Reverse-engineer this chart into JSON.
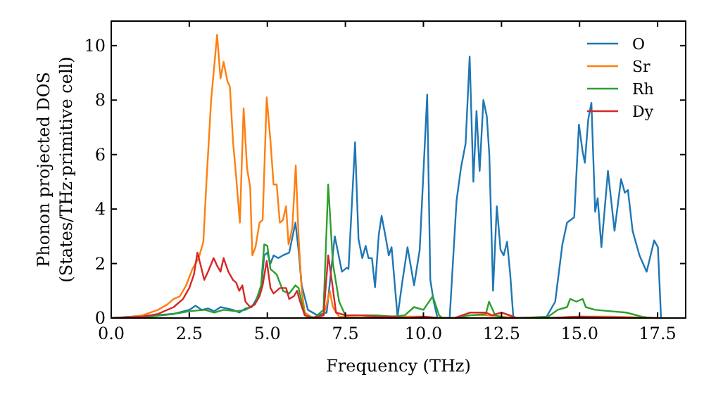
{
  "chart_data": {
    "type": "line",
    "xlabel": "Frequency (THz)",
    "ylabel": "Phonon projected DOS\n(States/THz·primitive cell)",
    "xlim": [
      0,
      18.4
    ],
    "ylim": [
      0,
      10.9
    ],
    "xticks": [
      {
        "value": 0,
        "label": "0.0"
      },
      {
        "value": 2.5,
        "label": "2.5"
      },
      {
        "value": 5,
        "label": "5.0"
      },
      {
        "value": 7.5,
        "label": "7.5"
      },
      {
        "value": 10,
        "label": "10.0"
      },
      {
        "value": 12.5,
        "label": "12.5"
      },
      {
        "value": 15,
        "label": "15.0"
      },
      {
        "value": 17.5,
        "label": "17.5"
      }
    ],
    "yticks": [
      0,
      2,
      4,
      6,
      8,
      10
    ],
    "grid": false,
    "legend": "top right",
    "marker": "none",
    "line_style": "solid",
    "series": [
      {
        "name": "O",
        "color": "#1f77b4",
        "x": [
          0,
          2,
          2.5,
          2.7,
          2.9,
          3.1,
          3.3,
          3.5,
          3.7,
          3.9,
          4.1,
          4.3,
          4.5,
          4.6,
          4.8,
          4.9,
          5.0,
          5.1,
          5.2,
          5.35,
          5.5,
          5.7,
          5.9,
          6.0,
          6.1,
          6.3,
          6.6,
          6.9,
          7.16,
          7.39,
          7.55,
          7.6,
          7.81,
          7.92,
          8.04,
          8.15,
          8.24,
          8.35,
          8.45,
          8.57,
          8.66,
          8.8,
          8.89,
          8.98,
          9.17,
          9.32,
          9.49,
          9.7,
          9.88,
          10.12,
          10.22,
          10.33,
          10.45,
          10.84,
          11.06,
          11.2,
          11.35,
          11.48,
          11.6,
          11.7,
          11.8,
          11.92,
          12.03,
          12.11,
          12.23,
          12.35,
          12.47,
          12.57,
          12.68,
          12.78,
          12.88,
          13.92,
          14.22,
          14.45,
          14.6,
          14.83,
          14.98,
          15.1,
          15.17,
          15.28,
          15.38,
          15.5,
          15.58,
          15.7,
          15.91,
          16.12,
          16.33,
          16.45,
          16.55,
          16.7,
          16.92,
          17.15,
          17.39,
          17.51,
          17.61
        ],
        "values": [
          0,
          0.15,
          0.3,
          0.45,
          0.3,
          0.35,
          0.25,
          0.4,
          0.35,
          0.3,
          0.2,
          0.35,
          0.4,
          0.6,
          1.0,
          2.3,
          2.4,
          2.0,
          2.3,
          2.2,
          2.3,
          2.4,
          3.5,
          2.5,
          1.2,
          0.3,
          0.1,
          0.2,
          3.0,
          1.7,
          1.85,
          1.8,
          6.45,
          2.9,
          2.2,
          2.65,
          2.2,
          2.2,
          1.13,
          3.06,
          3.75,
          2.9,
          2.3,
          2.6,
          0.05,
          1.3,
          2.6,
          1.2,
          2.5,
          8.2,
          1.4,
          0.6,
          0,
          0,
          4.3,
          5.5,
          6.4,
          9.6,
          5.0,
          7.6,
          5.4,
          8.0,
          7.4,
          6.0,
          1.0,
          4.1,
          2.5,
          2.3,
          2.8,
          1.6,
          0,
          0,
          0.6,
          2.7,
          3.5,
          3.7,
          7.1,
          6.1,
          5.7,
          7.3,
          7.9,
          3.9,
          4.4,
          2.6,
          5.4,
          3.2,
          5.1,
          4.6,
          4.7,
          3.2,
          2.3,
          1.7,
          2.85,
          2.6,
          0
        ]
      },
      {
        "name": "Sr",
        "color": "#ff7f0e",
        "x": [
          0,
          0.5,
          1,
          1.5,
          1.8,
          2.0,
          2.2,
          2.4,
          2.6,
          2.8,
          2.95,
          3.05,
          3.2,
          3.39,
          3.5,
          3.6,
          3.72,
          3.8,
          3.9,
          4.0,
          4.12,
          4.24,
          4.35,
          4.45,
          4.52,
          4.62,
          4.75,
          4.85,
          4.98,
          5.1,
          5.2,
          5.3,
          5.4,
          5.5,
          5.6,
          5.68,
          5.8,
          5.91,
          6.0,
          6.1,
          6.2,
          6.4,
          6.6,
          6.8,
          6.9,
          7.0,
          7.1,
          7.3,
          8,
          9,
          10,
          10.5,
          11,
          11.5,
          12,
          12.5,
          13,
          14,
          15,
          16,
          17,
          17.5
        ],
        "values": [
          0,
          0.02,
          0.1,
          0.3,
          0.5,
          0.7,
          0.8,
          1.2,
          1.8,
          2.2,
          2.8,
          5,
          8,
          10.4,
          8.8,
          9.4,
          8.7,
          8.5,
          6.5,
          5.2,
          3.5,
          7.7,
          5.5,
          4.8,
          2.3,
          2.6,
          3.5,
          3.6,
          8.1,
          6.5,
          4.9,
          4.9,
          3.5,
          3.6,
          4.1,
          2.7,
          3.3,
          5.6,
          3,
          1,
          0.2,
          0.05,
          0,
          0.1,
          0.5,
          1.0,
          0.4,
          0.05,
          0.02,
          0.05,
          0.05,
          0,
          0,
          0.1,
          0.1,
          0.05,
          0,
          0,
          0.05,
          0.05,
          0.02,
          0
        ]
      },
      {
        "name": "Rh",
        "color": "#2ca02c",
        "x": [
          0,
          1,
          2,
          2.5,
          3.0,
          3.3,
          3.6,
          4.0,
          4.3,
          4.6,
          4.8,
          4.9,
          5.0,
          5.1,
          5.3,
          5.5,
          5.7,
          5.9,
          6.0,
          6.1,
          6.2,
          6.5,
          6.8,
          6.95,
          7.1,
          7.3,
          7.5,
          8,
          8.5,
          9,
          9.4,
          9.7,
          10.0,
          10.3,
          10.5,
          10.6,
          11,
          11.5,
          12,
          12.1,
          12.3,
          12.6,
          13,
          14,
          14.3,
          14.6,
          14.7,
          14.9,
          15.1,
          15.2,
          15.5,
          16,
          16.5,
          17,
          17.3
        ],
        "values": [
          0,
          0.02,
          0.15,
          0.25,
          0.3,
          0.2,
          0.3,
          0.25,
          0.3,
          0.5,
          1.2,
          2.7,
          2.65,
          1.8,
          1.6,
          1.0,
          0.9,
          1.2,
          1.1,
          0.6,
          0.1,
          0,
          0.3,
          4.9,
          2.0,
          0.6,
          0.1,
          0.1,
          0.1,
          0.05,
          0.1,
          0.4,
          0.3,
          0.8,
          0.1,
          0,
          0,
          0.1,
          0.15,
          0.6,
          0.1,
          0,
          0,
          0.05,
          0.3,
          0.4,
          0.7,
          0.6,
          0.7,
          0.4,
          0.3,
          0.25,
          0.2,
          0.05,
          0
        ]
      },
      {
        "name": "Dy",
        "color": "#d62728",
        "x": [
          0,
          1,
          1.5,
          2.0,
          2.3,
          2.5,
          2.65,
          2.76,
          2.85,
          2.98,
          3.1,
          3.28,
          3.4,
          3.5,
          3.6,
          3.75,
          3.9,
          4.0,
          4.1,
          4.2,
          4.3,
          4.45,
          4.6,
          4.75,
          4.85,
          4.98,
          5.1,
          5.2,
          5.4,
          5.6,
          5.7,
          5.85,
          5.95,
          6.05,
          6.2,
          6.4,
          6.8,
          6.95,
          7.05,
          7.2,
          7.5,
          8,
          8.5,
          9,
          9.5,
          10,
          10.5,
          11,
          11.5,
          12,
          12.2,
          12.5,
          13,
          14,
          15,
          16,
          17,
          17.5
        ],
        "values": [
          0,
          0.05,
          0.15,
          0.4,
          0.7,
          1.1,
          1.6,
          2.4,
          2.0,
          1.4,
          1.7,
          2.2,
          1.9,
          1.7,
          2.2,
          1.7,
          1.4,
          1.3,
          1.0,
          1.2,
          0.6,
          0.4,
          0.5,
          0.8,
          1.2,
          2.1,
          1.1,
          0.9,
          1.1,
          1.1,
          0.7,
          0.8,
          1.0,
          0.6,
          0.1,
          0,
          0.1,
          2.3,
          1.5,
          0.2,
          0.1,
          0.1,
          0.05,
          0.05,
          0,
          0.05,
          0,
          0,
          0.2,
          0.2,
          0.1,
          0.2,
          0,
          0,
          0.05,
          0.02,
          0,
          0
        ]
      }
    ]
  }
}
